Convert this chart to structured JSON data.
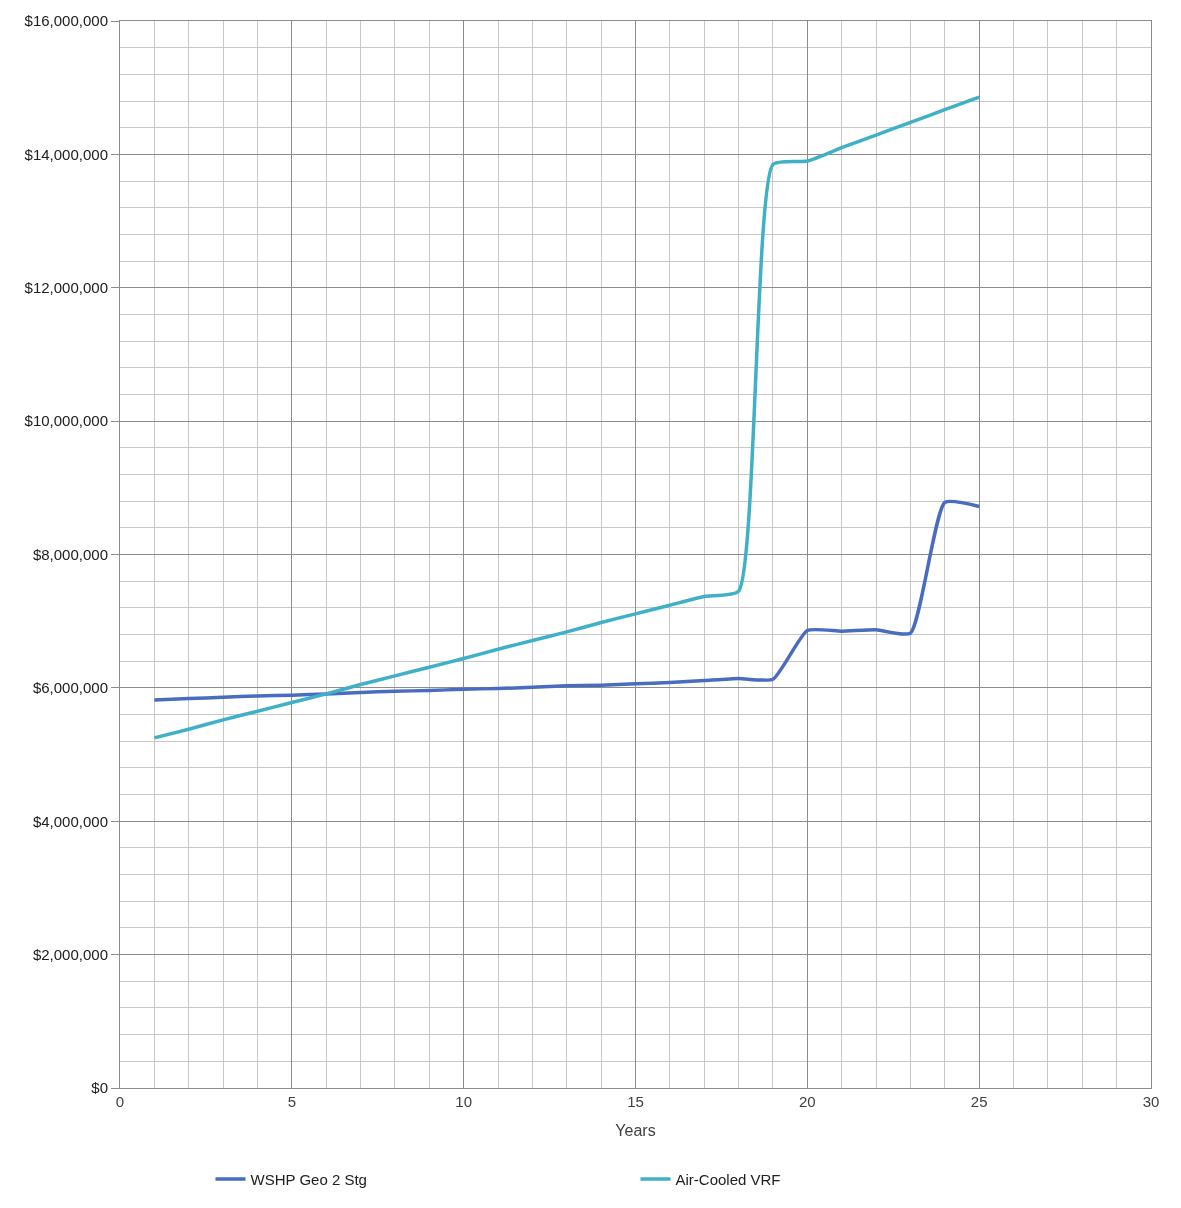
{
  "chart_data": {
    "type": "line",
    "xlabel": "Years",
    "x": [
      1,
      2,
      3,
      4,
      5,
      6,
      7,
      8,
      9,
      10,
      11,
      12,
      13,
      14,
      15,
      16,
      17,
      18,
      19,
      20,
      21,
      22,
      23,
      24,
      25
    ],
    "series": [
      {
        "name": "WSHP Geo 2 Stg",
        "color": "#4a6cc0",
        "values": [
          5820000,
          5840000,
          5860000,
          5880000,
          5890000,
          5910000,
          5930000,
          5950000,
          5960000,
          5980000,
          5990000,
          6010000,
          6030000,
          6040000,
          6060000,
          6080000,
          6110000,
          6140000,
          6130000,
          6860000,
          6850000,
          6870000,
          6820000,
          8780000,
          8720000
        ]
      },
      {
        "name": "Air-Cooled VRF",
        "color": "#3fb0c8",
        "values": [
          5250000,
          5380000,
          5520000,
          5650000,
          5780000,
          5910000,
          6050000,
          6180000,
          6310000,
          6440000,
          6580000,
          6710000,
          6840000,
          6980000,
          7110000,
          7240000,
          7370000,
          7450000,
          13850000,
          13900000,
          14100000,
          14290000,
          14480000,
          14670000,
          14860000
        ]
      }
    ],
    "xlim": [
      0,
      30
    ],
    "xticks": [
      0,
      5,
      10,
      15,
      20,
      25,
      30
    ],
    "ylim": [
      0,
      16000000
    ],
    "yticks": [
      {
        "value": 0,
        "label": "$0"
      },
      {
        "value": 2000000,
        "label": "$2,000,000"
      },
      {
        "value": 4000000,
        "label": "$4,000,000"
      },
      {
        "value": 6000000,
        "label": "$6,000,000"
      },
      {
        "value": 8000000,
        "label": "$8,000,000"
      },
      {
        "value": 10000000,
        "label": "$10,000,000"
      },
      {
        "value": 12000000,
        "label": "$12,000,000"
      },
      {
        "value": 14000000,
        "label": "$14,000,000"
      },
      {
        "value": 16000000,
        "label": "$16,000,000"
      }
    ],
    "grid": true,
    "legend": "bottom",
    "marker": "none",
    "line_style": "solid"
  }
}
